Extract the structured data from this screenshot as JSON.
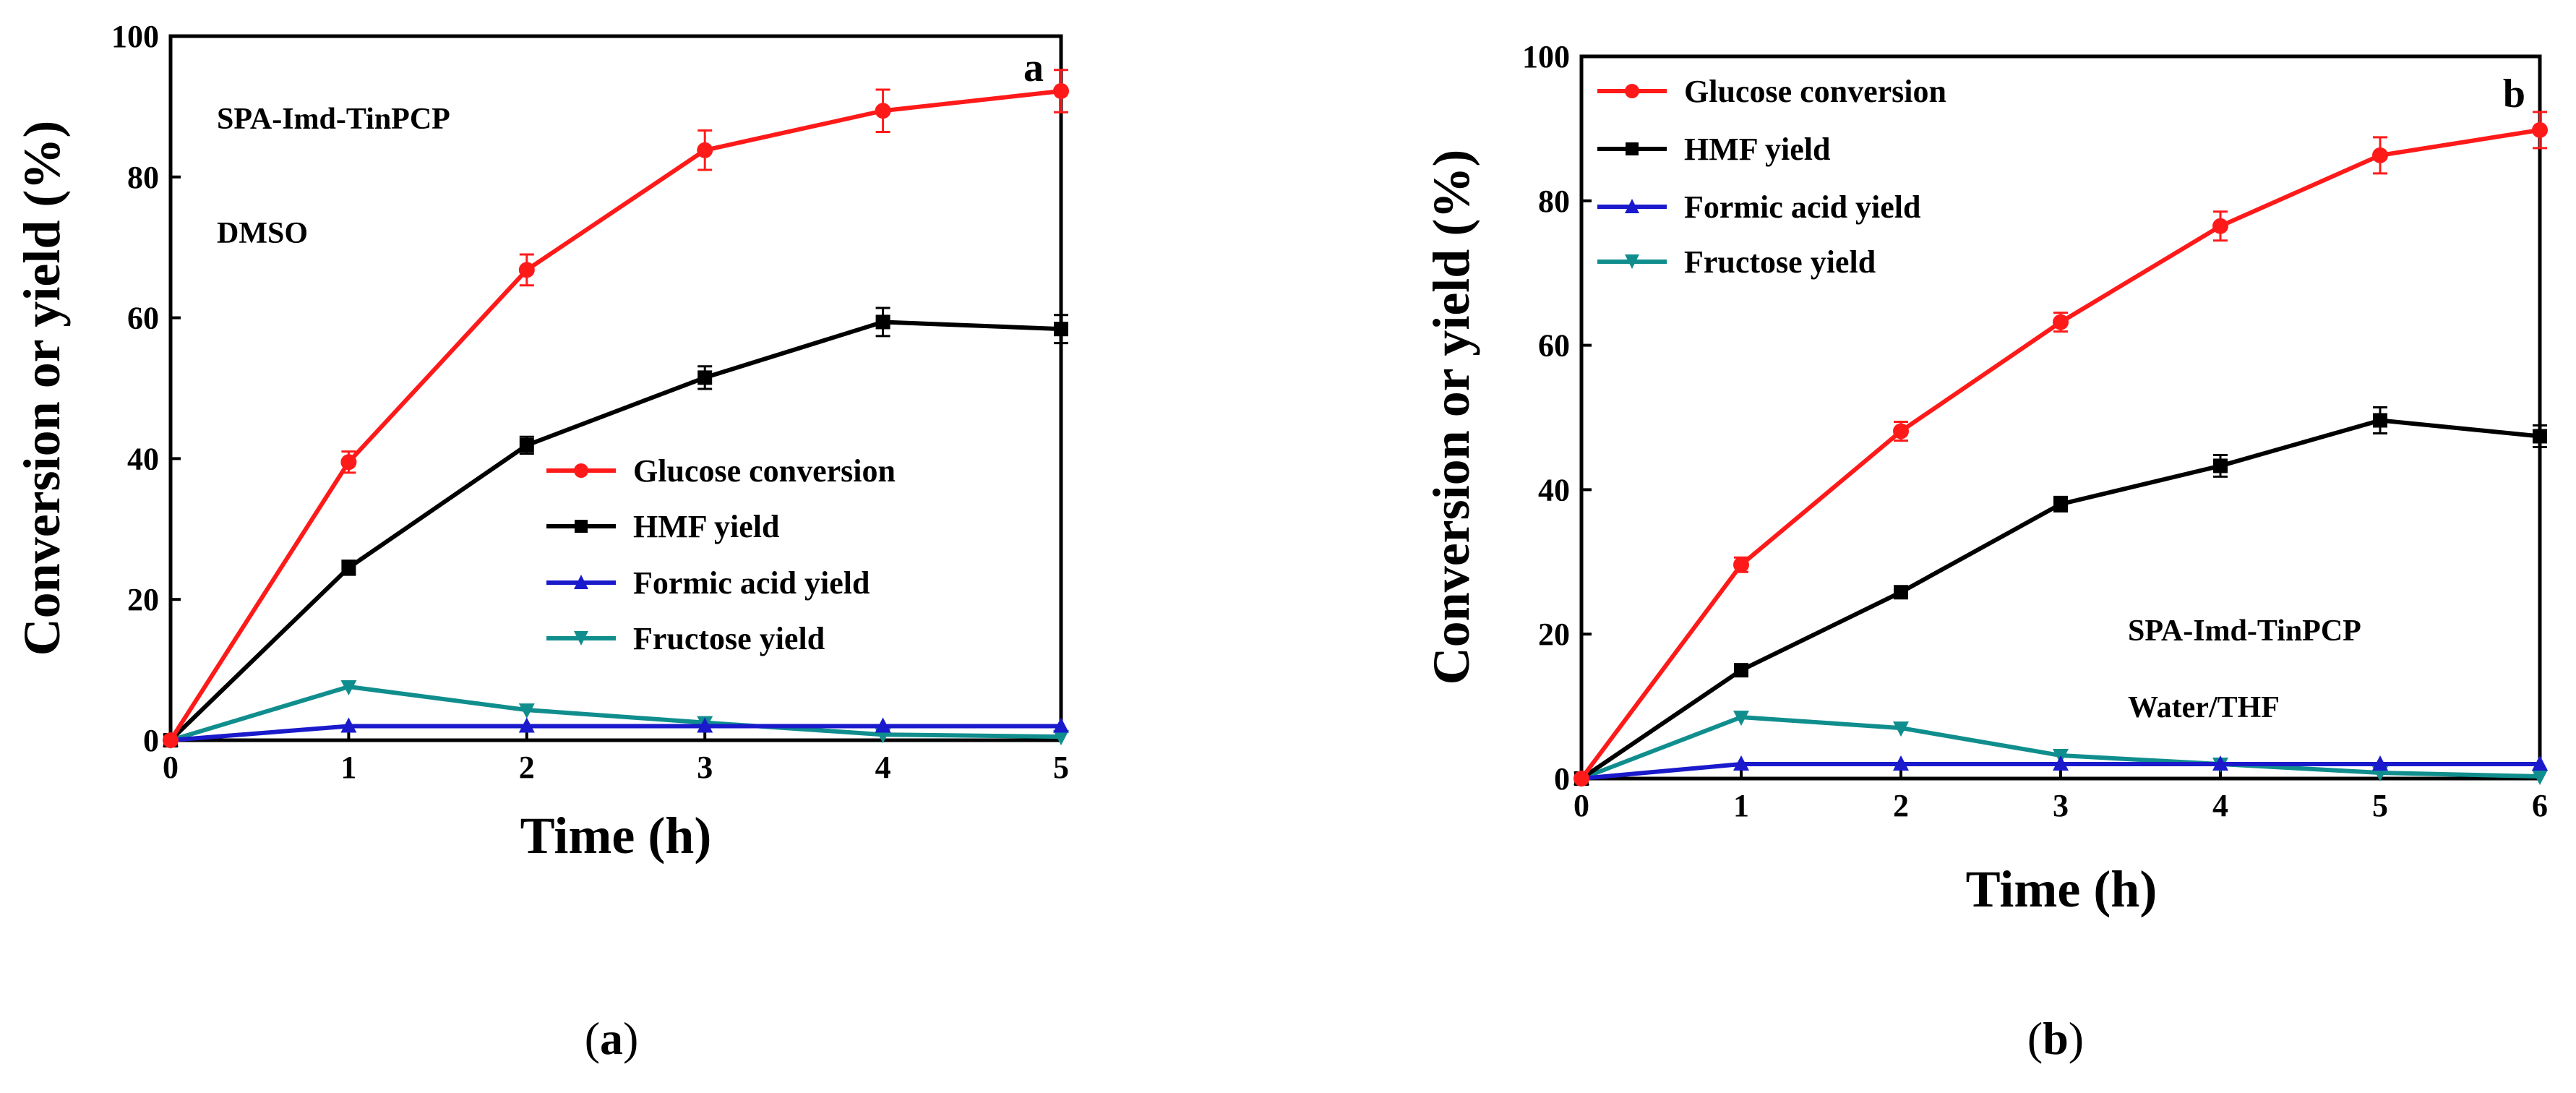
{
  "chart_data": [
    {
      "type": "line",
      "panel_letter": "a",
      "caption": "(a)",
      "caption_letter": "a",
      "xlabel": "Time (h)",
      "ylabel": "Conversion or yield (%)",
      "xlim": [
        0,
        5
      ],
      "ylim": [
        0,
        100
      ],
      "xticks": [
        0,
        1,
        2,
        3,
        4,
        5
      ],
      "yticks": [
        0,
        20,
        40,
        60,
        80,
        100
      ],
      "annotations": [
        "SPA-Imd-TinPCP",
        "DMSO"
      ],
      "legend_position": "center-right",
      "x": [
        0,
        1,
        2,
        3,
        4,
        5
      ],
      "series": [
        {
          "name": "Glucose conversion",
          "color": "#ff1a1a",
          "marker": "circle",
          "values": [
            0,
            39.5,
            66.8,
            83.8,
            89.4,
            92.2
          ],
          "errors": [
            0,
            1.5,
            2.2,
            2.8,
            3.0,
            3.0
          ]
        },
        {
          "name": "HMF yield",
          "color": "#000000",
          "marker": "square",
          "values": [
            0,
            24.5,
            41.9,
            51.5,
            59.4,
            58.4
          ],
          "errors": [
            0,
            1.0,
            1.2,
            1.6,
            2.0,
            2.0
          ]
        },
        {
          "name": "Formic acid yield",
          "color": "#1a1acc",
          "marker": "triangle-up",
          "values": [
            0,
            2.0,
            2.0,
            2.0,
            2.0,
            2.0
          ],
          "errors": [
            0,
            0,
            0,
            0,
            0,
            0
          ]
        },
        {
          "name": "Fructose yield",
          "color": "#108e8e",
          "marker": "triangle-down",
          "values": [
            0,
            7.6,
            4.3,
            2.5,
            0.8,
            0.5
          ],
          "errors": [
            0,
            0,
            0,
            0,
            0,
            0
          ]
        }
      ]
    },
    {
      "type": "line",
      "panel_letter": "b",
      "caption": "(b)",
      "caption_letter": "b",
      "xlabel": "Time (h)",
      "ylabel": "Conversion or yield (%)",
      "xlim": [
        0,
        6
      ],
      "ylim": [
        0,
        100
      ],
      "xticks": [
        0,
        1,
        2,
        3,
        4,
        5,
        6
      ],
      "yticks": [
        0,
        20,
        40,
        60,
        80,
        100
      ],
      "annotations": [
        "SPA-Imd-TinPCP",
        "Water/THF"
      ],
      "legend_position": "top-left",
      "x": [
        0,
        1,
        2,
        3,
        4,
        5,
        6
      ],
      "series": [
        {
          "name": "Glucose conversion",
          "color": "#ff1a1a",
          "marker": "circle",
          "values": [
            0,
            29.6,
            48.1,
            63.2,
            76.5,
            86.3,
            89.8
          ],
          "errors": [
            0,
            1.0,
            1.3,
            1.3,
            2.0,
            2.5,
            2.5
          ]
        },
        {
          "name": "HMF yield",
          "color": "#000000",
          "marker": "square",
          "values": [
            0,
            15.0,
            25.8,
            38.0,
            43.3,
            49.6,
            47.4
          ],
          "errors": [
            0,
            0.8,
            0.8,
            1.0,
            1.5,
            1.8,
            1.5
          ]
        },
        {
          "name": "Formic acid yield",
          "color": "#1a1acc",
          "marker": "triangle-up",
          "values": [
            0,
            2.0,
            2.0,
            2.0,
            2.0,
            2.0,
            2.0
          ],
          "errors": [
            0,
            0,
            0,
            0,
            0,
            0,
            0
          ]
        },
        {
          "name": "Fructose yield",
          "color": "#108e8e",
          "marker": "triangle-down",
          "values": [
            0,
            8.5,
            7.0,
            3.2,
            2.0,
            0.8,
            0.3
          ],
          "errors": [
            0,
            0,
            0,
            0,
            0,
            0,
            0
          ]
        }
      ]
    }
  ]
}
